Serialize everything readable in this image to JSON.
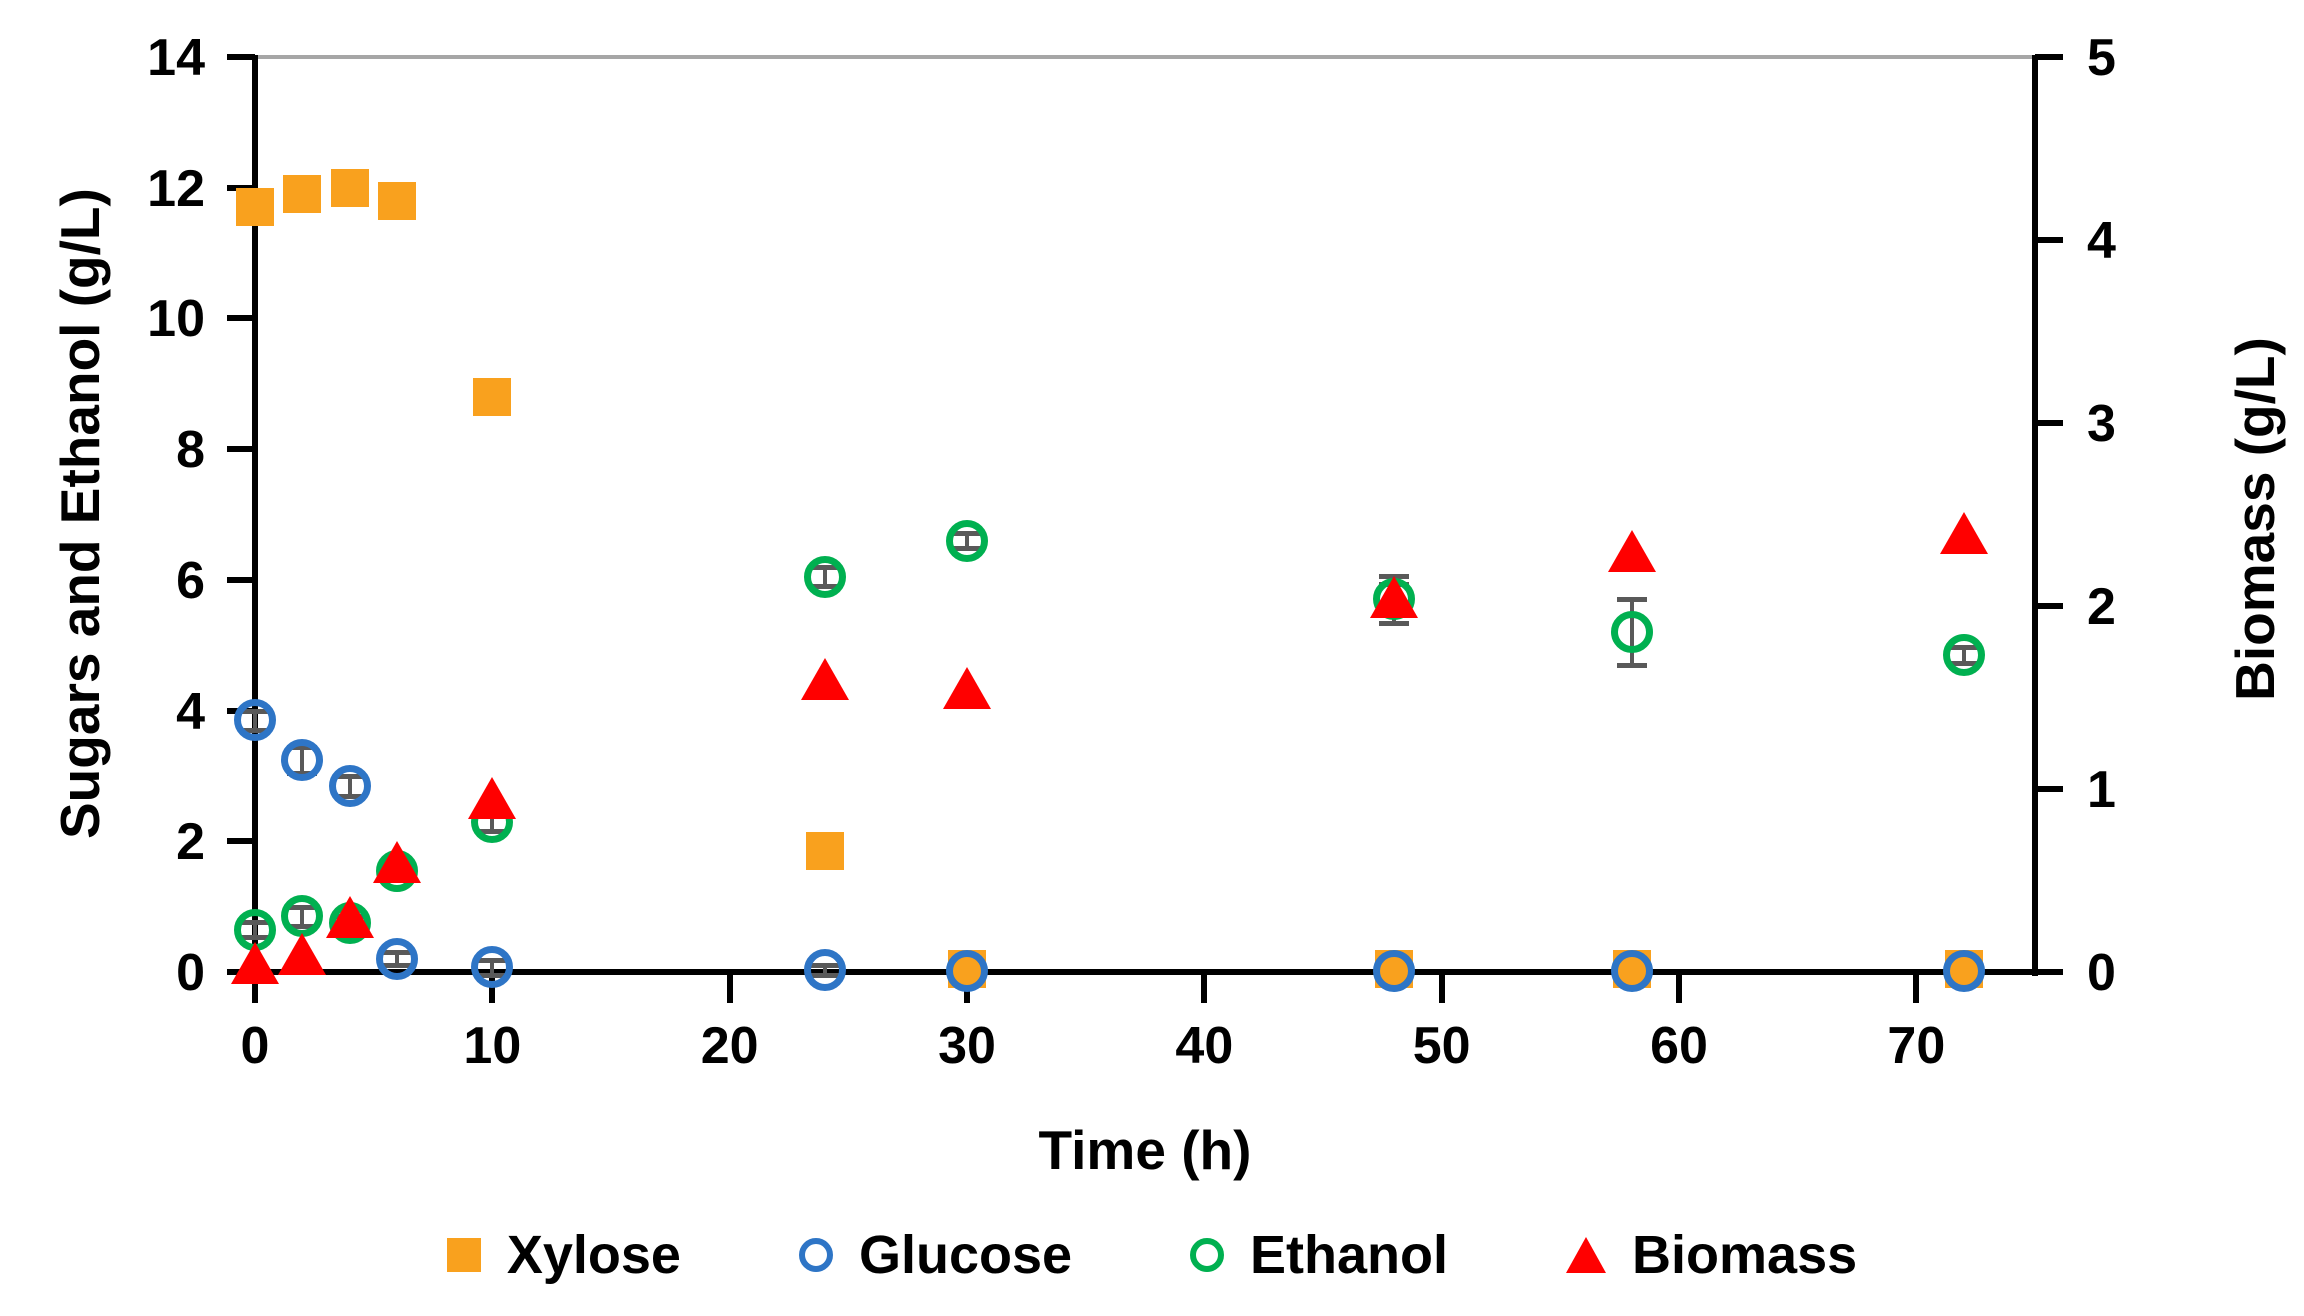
{
  "chart_data": {
    "type": "scatter",
    "xlabel": "Time (h)",
    "ylabel_left": "Sugars and Ethanol (g/L)",
    "ylabel_right": "Biomass (g/L)",
    "x": [
      0,
      2,
      4,
      6,
      10,
      24,
      30,
      48,
      58,
      72
    ],
    "xlim": [
      0,
      75
    ],
    "x_ticks": [
      0,
      10,
      20,
      30,
      40,
      50,
      60,
      70
    ],
    "ylim_left": [
      0,
      14
    ],
    "y_ticks_left": [
      0,
      2,
      4,
      6,
      8,
      10,
      12,
      14
    ],
    "ylim_right": [
      0,
      5
    ],
    "y_ticks_right": [
      0,
      1,
      2,
      3,
      4,
      5
    ],
    "grid": false,
    "legend_position": "bottom",
    "error_bar_color": "#595959",
    "top_border_color": "#a6a6a6",
    "series": [
      {
        "name": "Xylose",
        "axis": "left",
        "marker": "square",
        "color": "#F9A11E",
        "values": [
          11.7,
          11.9,
          12.0,
          11.8,
          8.8,
          1.85,
          0.05,
          0.05,
          0.05,
          0.05
        ],
        "errors": [
          0,
          0,
          0,
          0,
          0,
          0,
          0,
          0,
          0,
          0
        ]
      },
      {
        "name": "Glucose",
        "axis": "left",
        "marker": "circle-open",
        "color": "#2E75C6",
        "values": [
          3.85,
          3.25,
          2.85,
          0.2,
          0.07,
          0.03,
          0.02,
          0.02,
          0.02,
          0.02
        ],
        "errors": [
          0.15,
          0.2,
          0.15,
          0.1,
          0.12,
          0.08,
          0.08,
          0.08,
          0.08,
          0.08
        ]
      },
      {
        "name": "Ethanol",
        "axis": "left",
        "marker": "circle-open",
        "color": "#00B050",
        "values": [
          0.65,
          0.85,
          0.75,
          1.55,
          2.3,
          6.05,
          6.6,
          5.7,
          5.2,
          4.85
        ],
        "errors": [
          0.12,
          0.15,
          0.1,
          0.12,
          0.15,
          0.15,
          0.12,
          0.36,
          0.5,
          0.12
        ]
      },
      {
        "name": "Biomass",
        "axis": "right",
        "marker": "triangle",
        "color": "#FF0000",
        "values": [
          0.05,
          0.1,
          0.3,
          0.6,
          0.95,
          1.6,
          1.55,
          2.05,
          2.3,
          2.4
        ],
        "errors": [
          0,
          0,
          0,
          0,
          0,
          0,
          0,
          0.07,
          0,
          0
        ]
      }
    ]
  },
  "legend": {
    "items": [
      {
        "label": "Xylose"
      },
      {
        "label": "Glucose"
      },
      {
        "label": "Ethanol"
      },
      {
        "label": "Biomass"
      }
    ]
  }
}
